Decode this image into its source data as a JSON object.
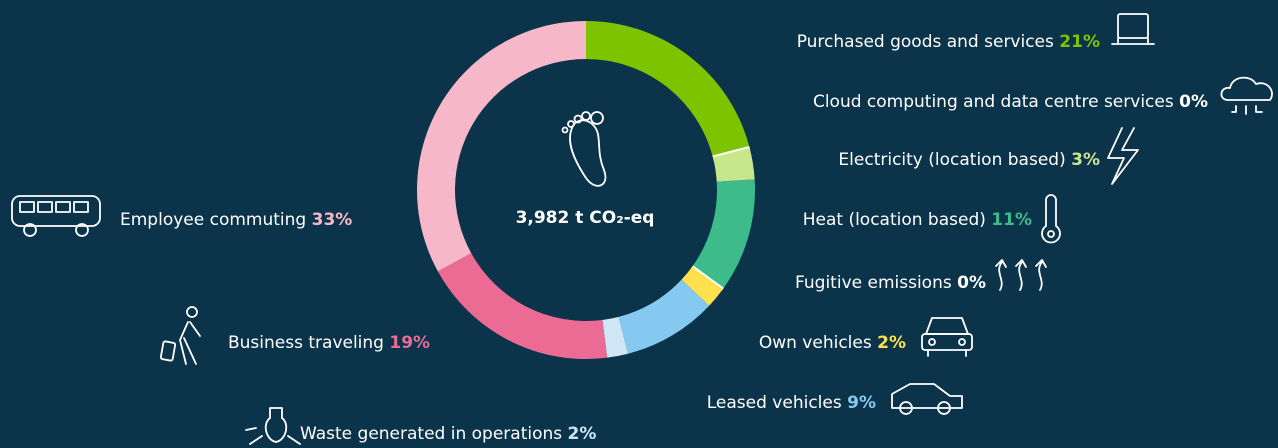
{
  "chart_data": {
    "type": "donut",
    "center_label": "3,982 t CO₂-eq",
    "categories": [
      "Purchased goods and services",
      "Cloud computing and data centre services",
      "Electricity (location based)",
      "Heat (location based)",
      "Fugitive emissions",
      "Own vehicles",
      "Leased vehicles",
      "Waste generated in operations",
      "Business traveling",
      "Employee commuting"
    ],
    "values": [
      21,
      0,
      3,
      11,
      0,
      2,
      9,
      2,
      19,
      33
    ],
    "value_labels": [
      "21%",
      "0%",
      "3%",
      "11%",
      "0%",
      "2%",
      "9%",
      "2%",
      "19%",
      "33%"
    ],
    "colors": [
      "#7dc300",
      "#ffffff",
      "#c8e68c",
      "#3dbb8a",
      "#ffffff",
      "#ffe14d",
      "#86c9f0",
      "#cfe6f7",
      "#ec6b95",
      "#f6b7c9"
    ]
  }
}
